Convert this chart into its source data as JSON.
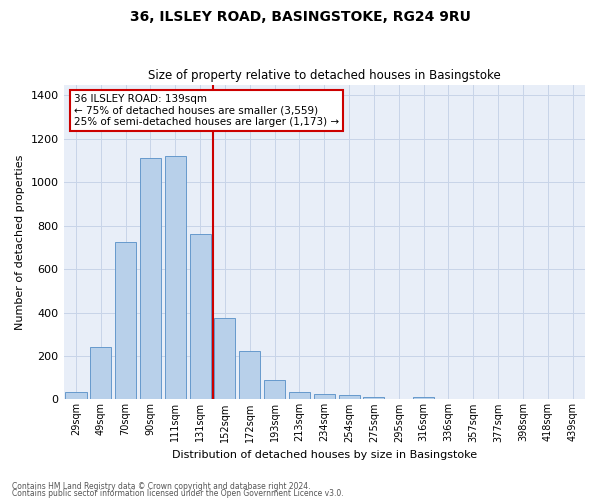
{
  "title1": "36, ILSLEY ROAD, BASINGSTOKE, RG24 9RU",
  "title2": "Size of property relative to detached houses in Basingstoke",
  "xlabel": "Distribution of detached houses by size in Basingstoke",
  "ylabel": "Number of detached properties",
  "bar_labels": [
    "29sqm",
    "49sqm",
    "70sqm",
    "90sqm",
    "111sqm",
    "131sqm",
    "152sqm",
    "172sqm",
    "193sqm",
    "213sqm",
    "234sqm",
    "254sqm",
    "275sqm",
    "295sqm",
    "316sqm",
    "336sqm",
    "357sqm",
    "377sqm",
    "398sqm",
    "418sqm",
    "439sqm"
  ],
  "bar_values": [
    35,
    240,
    725,
    1110,
    1120,
    760,
    375,
    225,
    90,
    35,
    25,
    20,
    10,
    0,
    10,
    0,
    0,
    0,
    0,
    0,
    0
  ],
  "bar_color": "#b8d0ea",
  "bar_edge_color": "#6699cc",
  "vline_color": "#cc0000",
  "annotation_text": "36 ILSLEY ROAD: 139sqm\n← 75% of detached houses are smaller (3,559)\n25% of semi-detached houses are larger (1,173) →",
  "annotation_box_color": "white",
  "annotation_box_edge": "#cc0000",
  "ylim": [
    0,
    1450
  ],
  "yticks": [
    0,
    200,
    400,
    600,
    800,
    1000,
    1200,
    1400
  ],
  "grid_color": "#c8d4e8",
  "bg_color": "#e8eef8",
  "footnote1": "Contains HM Land Registry data © Crown copyright and database right 2024.",
  "footnote2": "Contains public sector information licensed under the Open Government Licence v3.0."
}
